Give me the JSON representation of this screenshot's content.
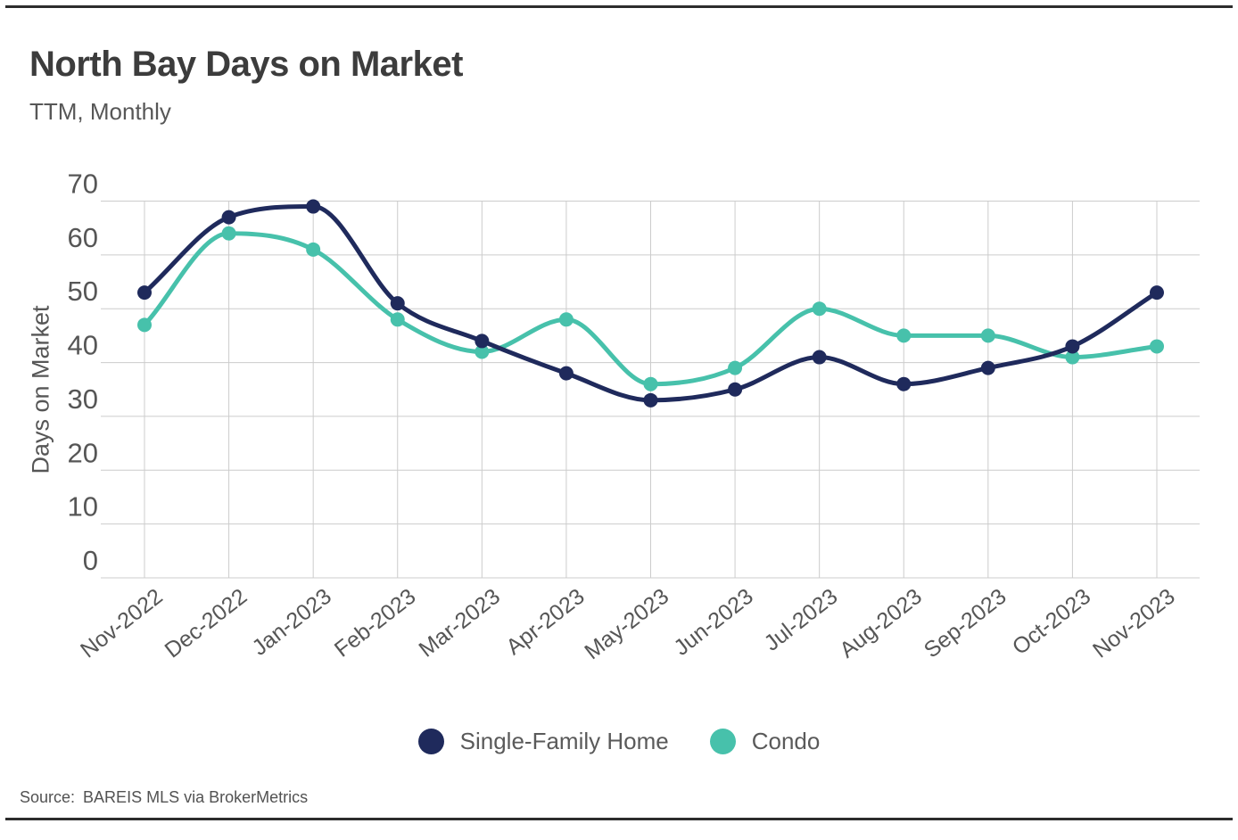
{
  "header": {
    "title": "North Bay Days on Market",
    "subtitle": "TTM, Monthly"
  },
  "chart_data": {
    "type": "line",
    "categories": [
      "Nov-2022",
      "Dec-2022",
      "Jan-2023",
      "Feb-2023",
      "Mar-2023",
      "Apr-2023",
      "May-2023",
      "Jun-2023",
      "Jul-2023",
      "Aug-2023",
      "Sep-2023",
      "Oct-2023",
      "Nov-2023"
    ],
    "series": [
      {
        "name": "Single-Family Home",
        "color": "#1f2a5c",
        "values": [
          53,
          67,
          69,
          51,
          44,
          38,
          33,
          35,
          41,
          36,
          39,
          43,
          53
        ]
      },
      {
        "name": "Condo",
        "color": "#47c1ab",
        "values": [
          47,
          64,
          61,
          48,
          42,
          48,
          36,
          39,
          50,
          45,
          45,
          41,
          43
        ]
      }
    ],
    "title": "North Bay Days on Market",
    "xlabel": "",
    "ylabel": "Days on Market",
    "ylim": [
      0,
      70
    ],
    "yticks": [
      0,
      10,
      20,
      30,
      40,
      50,
      60,
      70
    ],
    "grid": "on",
    "legend_position": "bottom-center",
    "x_tick_rotation_deg": -38
  },
  "style": {
    "gridline_color": "#cccccc",
    "axis_text_color": "#565656",
    "rule_color": "#2d2d2d"
  },
  "source": {
    "label": "Source:",
    "text": "BAREIS MLS via BrokerMetrics"
  }
}
